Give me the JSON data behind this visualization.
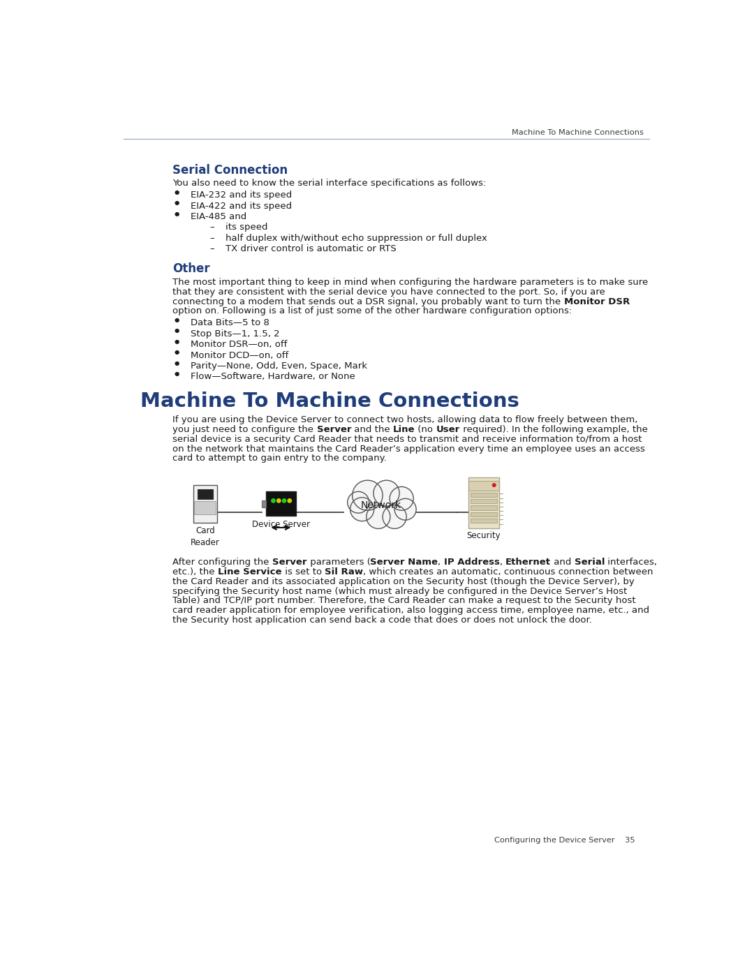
{
  "header_text": "Machine To Machine Connections",
  "footer_text": "Configuring the Device Server    35",
  "header_line_color": "#a8b4c8",
  "background_color": "#ffffff",
  "section1_title": "Serial Connection",
  "title_color": "#1f3d7a",
  "section1_intro": "You also need to know the serial interface specifications as follows:",
  "section1_bullets": [
    "EIA-232 and its speed",
    "EIA-422 and its speed",
    "EIA-485 and"
  ],
  "section1_subbullets": [
    "its speed",
    "half duplex with/without echo suppression or full duplex",
    "TX driver control is automatic or RTS"
  ],
  "section2_title": "Other",
  "section2_para_line1": "The most important thing to keep in mind when configuring the hardware parameters is to make sure",
  "section2_para_line2": "that they are consistent with the serial device you have connected to the port. So, if you are",
  "section2_para_line3a": "connecting to a modem that sends out a DSR signal, you probably want to turn the ",
  "section2_para_line3b": "Monitor DSR",
  "section2_para_line4": "option on. Following is a list of just some of the other hardware configuration options:",
  "section2_bullets": [
    "Data Bits—5 to 8",
    "Stop Bits—1, 1.5, 2",
    "Monitor DSR—on, off",
    "Monitor DCD—on, off",
    "Parity—None, Odd, Even, Space, Mark",
    "Flow—Software, Hardware, or None"
  ],
  "section3_title": "Machine To Machine Connections",
  "section3_para_line1": "If you are using the Device Server to connect two hosts, allowing data to flow freely between them,",
  "section3_para_line2a": "you just need to configure the ",
  "section3_para_line2b": "Server",
  "section3_para_line2c": " and the ",
  "section3_para_line2d": "Line",
  "section3_para_line2e": " (no ",
  "section3_para_line2f": "User",
  "section3_para_line2g": " required). In the following example, the",
  "section3_para_line3": "serial device is a security Card Reader that needs to transmit and receive information to/from a host",
  "section3_para_line4": "on the network that maintains the Card Reader’s application every time an employee uses an access",
  "section3_para_line5": "card to attempt to gain entry to the company.",
  "after_para_line1a": "After configuring the ",
  "after_para_line1b": "Server",
  "after_para_line1c": " parameters (",
  "after_para_line1d": "Server Name",
  "after_para_line1e": ", ",
  "after_para_line1f": "IP Address",
  "after_para_line1g": ", ",
  "after_para_line1h": "Ethernet",
  "after_para_line1i": " and ",
  "after_para_line1j": "Serial",
  "after_para_line1k": " interfaces,",
  "after_para_line2a": "etc.), the ",
  "after_para_line2b": "Line Service",
  "after_para_line2c": " is set to ",
  "after_para_line2d": "Sil Raw",
  "after_para_line2e": ", which creates an automatic, continuous connection between",
  "after_para_line3": "the Card Reader and its associated application on the Security host (though the Device Server), by",
  "after_para_line4": "specifying the Security host name (which must already be configured in the Device Server’s Host",
  "after_para_line5": "Table) and TCP/IP port number. Therefore, the Card Reader can make a request to the Security host",
  "after_para_line6": "card reader application for employee verification, also logging access time, employee name, etc., and",
  "after_para_line7": "the Security host application can send back a code that does or does not unlock the door.",
  "text_color": "#1a1a1a",
  "body_fontsize": 9.5,
  "bullet_color": "#1a1a1a"
}
